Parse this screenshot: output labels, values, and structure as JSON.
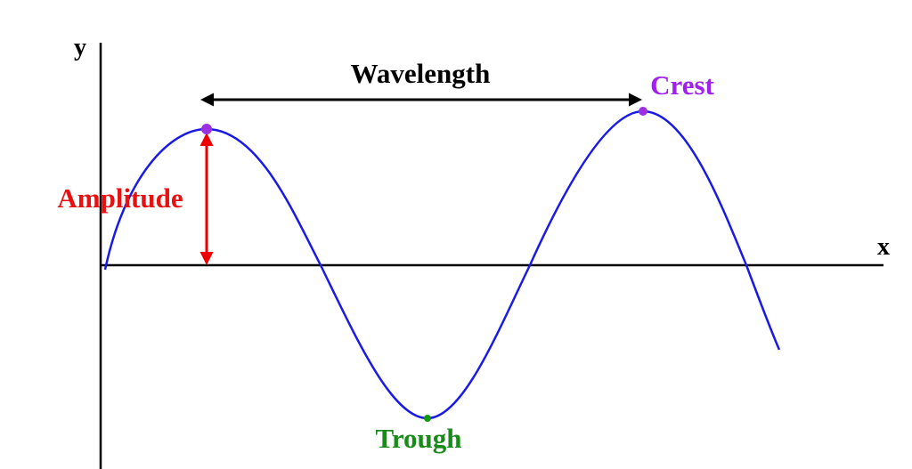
{
  "axes": {
    "y_label": "y",
    "x_label": "x"
  },
  "labels": {
    "wavelength": "Wavelength",
    "crest": "Crest",
    "amplitude": "Amplitude",
    "trough": "Trough"
  }
}
